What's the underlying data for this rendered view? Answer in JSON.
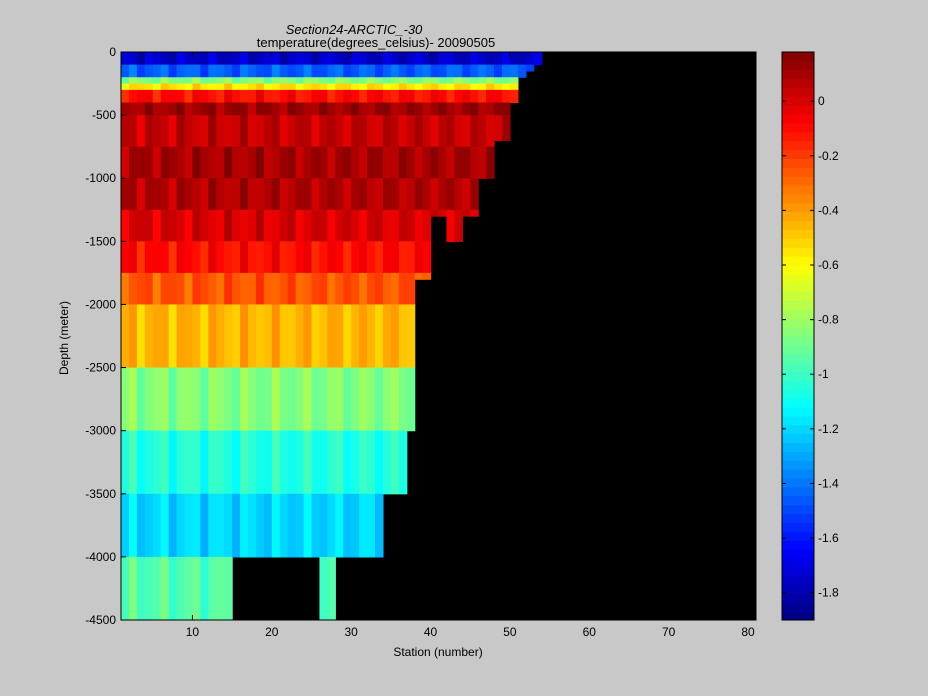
{
  "figure": {
    "title": "Section24-ARCTIC_-30",
    "subtitle": "temperature(degrees_celsius)- 20090505"
  },
  "chart_data": {
    "type": "heatmap",
    "title": "Section24-ARCTIC_-30",
    "subtitle": "temperature(degrees_celsius)- 20090505",
    "xlabel": "Station (number)",
    "ylabel": "Depth (meter)",
    "xlim": [
      1,
      81
    ],
    "ylim": [
      -4500,
      0
    ],
    "xticks": [
      10,
      20,
      30,
      40,
      50,
      60,
      70,
      80
    ],
    "yticks": [
      0,
      -500,
      -1000,
      -1500,
      -2000,
      -2500,
      -3000,
      -3500,
      -4000,
      -4500
    ],
    "colorbar": {
      "range": [
        -1.9,
        0.18
      ],
      "ticks": [
        0,
        -0.2,
        -0.4,
        -0.6,
        -0.8,
        -1,
        -1.2,
        -1.4,
        -1.6,
        -1.8
      ],
      "colormap": "jet"
    },
    "missing_color": "#000000",
    "bottom_depth_by_station": {
      "stations": [
        1,
        14,
        15,
        25,
        26,
        27,
        28,
        33,
        34,
        36,
        37,
        38,
        39,
        40,
        41,
        42,
        43,
        44,
        45,
        46,
        47,
        48,
        49,
        50,
        51,
        52,
        53
      ],
      "depth": [
        -4500,
        -4500,
        -4000,
        -4000,
        -4500,
        -4500,
        -4000,
        -4000,
        -3500,
        -3500,
        -3000,
        -1800,
        -1800,
        -1300,
        -1300,
        -1500,
        -1500,
        -1300,
        -1300,
        -1000,
        -1000,
        -700,
        -700,
        -400,
        -200,
        -150,
        -100
      ]
    },
    "depth_layers": [
      {
        "top": 0,
        "bottom": -100,
        "temperature": -1.75
      },
      {
        "top": -100,
        "bottom": -200,
        "temperature": -1.45
      },
      {
        "top": -200,
        "bottom": -250,
        "temperature": -0.85
      },
      {
        "top": -250,
        "bottom": -300,
        "temperature": -0.55
      },
      {
        "top": -300,
        "bottom": -400,
        "temperature": -0.1
      },
      {
        "top": -400,
        "bottom": -500,
        "temperature": 0.12
      },
      {
        "top": -500,
        "bottom": -750,
        "temperature": 0.04
      },
      {
        "top": -750,
        "bottom": -1000,
        "temperature": 0.1
      },
      {
        "top": -1000,
        "bottom": -1250,
        "temperature": 0.08
      },
      {
        "top": -1250,
        "bottom": -1500,
        "temperature": 0.0
      },
      {
        "top": -1500,
        "bottom": -1750,
        "temperature": -0.1
      },
      {
        "top": -1750,
        "bottom": -2000,
        "temperature": -0.25
      },
      {
        "top": -2000,
        "bottom": -2500,
        "temperature": -0.45
      },
      {
        "top": -2500,
        "bottom": -3000,
        "temperature": -0.85
      },
      {
        "top": -3000,
        "bottom": -3500,
        "temperature": -1.05
      },
      {
        "top": -3500,
        "bottom": -4000,
        "temperature": -1.2
      },
      {
        "top": -4000,
        "bottom": -4500,
        "temperature": -0.95
      }
    ]
  }
}
